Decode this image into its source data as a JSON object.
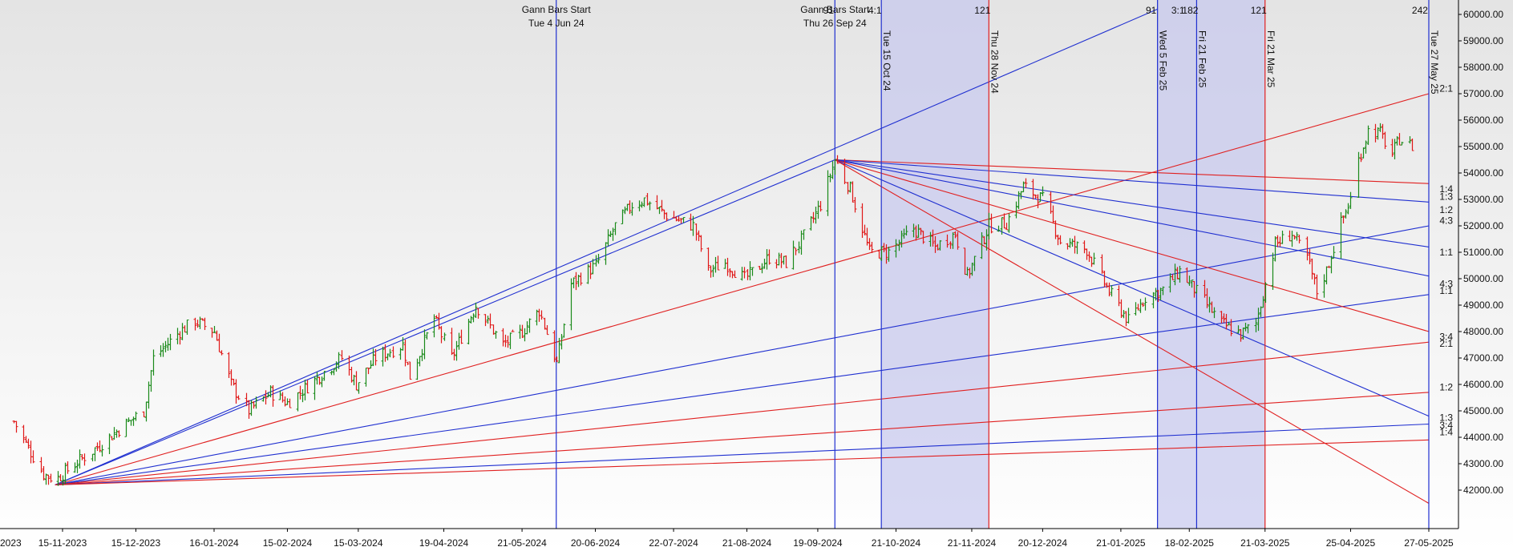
{
  "chart_data": {
    "type": "bar",
    "subtype": "ohlc-price-bars-with-gann-fans",
    "colors": {
      "up_bar": "#1a8a1a",
      "down_bar": "#e01818",
      "gann_blue": "#1f2fd0",
      "gann_red": "#e02020",
      "zone_fill": "#c6c8ee",
      "axis": "#000000",
      "background_top": "#e6e6e6",
      "background_bottom": "#ffffff"
    },
    "x_axis": {
      "ticks": [
        "15-11-2023",
        "15-12-2023",
        "16-01-2024",
        "15-02-2024",
        "15-03-2024",
        "19-04-2024",
        "21-05-2024",
        "20-06-2024",
        "22-07-2024",
        "21-08-2024",
        "19-09-2024",
        "21-10-2024",
        "21-11-2024",
        "20-12-2024",
        "21-01-2025",
        "18-02-2025",
        "21-03-2025",
        "25-04-2025",
        "27-05-2025"
      ],
      "left_clipped_label": "2023"
    },
    "y_axis": {
      "range": [
        41500,
        60300
      ],
      "ticks": [
        "42000.00",
        "43000.00",
        "44000.00",
        "45000.00",
        "46000.00",
        "47000.00",
        "48000.00",
        "49000.00",
        "50000.00",
        "51000.00",
        "52000.00",
        "53000.00",
        "54000.00",
        "55000.00",
        "56000.00",
        "57000.00",
        "58000.00",
        "59000.00",
        "60000.00"
      ],
      "values": [
        42000,
        43000,
        44000,
        45000,
        46000,
        47000,
        48000,
        49000,
        50000,
        51000,
        52000,
        53000,
        54000,
        55000,
        56000,
        57000,
        58000,
        59000,
        60000
      ]
    },
    "price_path": [
      {
        "d": "2023-10-26",
        "c": 44600
      },
      {
        "d": "2023-11-07",
        "c": 42600
      },
      {
        "d": "2023-11-12",
        "c": 42400
      },
      {
        "d": "2023-11-30",
        "c": 43700
      },
      {
        "d": "2023-12-08",
        "c": 44300
      },
      {
        "d": "2023-12-18",
        "c": 45000
      },
      {
        "d": "2023-12-22",
        "c": 47000
      },
      {
        "d": "2024-01-02",
        "c": 48000
      },
      {
        "d": "2024-01-08",
        "c": 48400
      },
      {
        "d": "2024-01-16",
        "c": 48000
      },
      {
        "d": "2024-01-23",
        "c": 46000
      },
      {
        "d": "2024-01-30",
        "c": 45000
      },
      {
        "d": "2024-02-08",
        "c": 45700
      },
      {
        "d": "2024-02-15",
        "c": 45300
      },
      {
        "d": "2024-02-29",
        "c": 46400
      },
      {
        "d": "2024-03-08",
        "c": 47000
      },
      {
        "d": "2024-03-14",
        "c": 46000
      },
      {
        "d": "2024-03-22",
        "c": 47000
      },
      {
        "d": "2024-04-02",
        "c": 47500
      },
      {
        "d": "2024-04-05",
        "c": 46300
      },
      {
        "d": "2024-04-15",
        "c": 48500
      },
      {
        "d": "2024-04-22",
        "c": 47000
      },
      {
        "d": "2024-05-02",
        "c": 49000
      },
      {
        "d": "2024-05-13",
        "c": 47500
      },
      {
        "d": "2024-05-21",
        "c": 48000
      },
      {
        "d": "2024-05-28",
        "c": 48800
      },
      {
        "d": "2024-06-04",
        "c": 46800
      },
      {
        "d": "2024-06-10",
        "c": 49800
      },
      {
        "d": "2024-06-20",
        "c": 50500
      },
      {
        "d": "2024-06-28",
        "c": 52000
      },
      {
        "d": "2024-07-05",
        "c": 52800
      },
      {
        "d": "2024-07-10",
        "c": 53000
      },
      {
        "d": "2024-07-19",
        "c": 52400
      },
      {
        "d": "2024-07-30",
        "c": 52000
      },
      {
        "d": "2024-08-05",
        "c": 50300
      },
      {
        "d": "2024-08-12",
        "c": 50600
      },
      {
        "d": "2024-08-20",
        "c": 50000
      },
      {
        "d": "2024-08-30",
        "c": 50800
      },
      {
        "d": "2024-09-06",
        "c": 50600
      },
      {
        "d": "2024-09-13",
        "c": 51600
      },
      {
        "d": "2024-09-20",
        "c": 52800
      },
      {
        "d": "2024-09-26",
        "c": 54500
      },
      {
        "d": "2024-10-02",
        "c": 53400
      },
      {
        "d": "2024-10-10",
        "c": 51000
      },
      {
        "d": "2024-10-18",
        "c": 51000
      },
      {
        "d": "2024-10-28",
        "c": 51900
      },
      {
        "d": "2024-11-06",
        "c": 51200
      },
      {
        "d": "2024-11-14",
        "c": 51700
      },
      {
        "d": "2024-11-19",
        "c": 50100
      },
      {
        "d": "2024-11-28",
        "c": 52000
      },
      {
        "d": "2024-12-05",
        "c": 52100
      },
      {
        "d": "2024-12-12",
        "c": 53500
      },
      {
        "d": "2024-12-20",
        "c": 53000
      },
      {
        "d": "2024-12-27",
        "c": 51400
      },
      {
        "d": "2025-01-07",
        "c": 51100
      },
      {
        "d": "2025-01-16",
        "c": 49500
      },
      {
        "d": "2025-01-24",
        "c": 48400
      },
      {
        "d": "2025-01-31",
        "c": 49300
      },
      {
        "d": "2025-02-07",
        "c": 49600
      },
      {
        "d": "2025-02-14",
        "c": 50300
      },
      {
        "d": "2025-02-21",
        "c": 49500
      },
      {
        "d": "2025-03-03",
        "c": 48300
      },
      {
        "d": "2025-03-11",
        "c": 47900
      },
      {
        "d": "2025-03-17",
        "c": 48300
      },
      {
        "d": "2025-03-25",
        "c": 51300
      },
      {
        "d": "2025-04-01",
        "c": 51700
      },
      {
        "d": "2025-04-07",
        "c": 50800
      },
      {
        "d": "2025-04-11",
        "c": 49500
      },
      {
        "d": "2025-04-15",
        "c": 50300
      },
      {
        "d": "2025-04-21",
        "c": 52100
      },
      {
        "d": "2025-04-25",
        "c": 53000
      },
      {
        "d": "2025-04-28",
        "c": 54500
      },
      {
        "d": "2025-05-02",
        "c": 55600
      },
      {
        "d": "2025-05-07",
        "c": 55500
      },
      {
        "d": "2025-05-12",
        "c": 54700
      },
      {
        "d": "2025-05-15",
        "c": 55300
      },
      {
        "d": "2025-05-20",
        "c": 55000
      }
    ],
    "shaded_zones": [
      {
        "from": "2024-10-15",
        "to": "2024-11-28"
      },
      {
        "from": "2025-02-05",
        "to": "2025-03-21"
      }
    ],
    "time_lines": [
      {
        "date": "2024-06-04",
        "color": "blue",
        "label_top": [
          "Gann Bars Start",
          "Tue 4 Jun 24"
        ]
      },
      {
        "date": "2024-09-26",
        "color": "blue",
        "label_top": [
          "Gann Bars Start",
          "Thu 26 Sep 24"
        ]
      },
      {
        "date": "2024-10-15",
        "color": "blue",
        "label_vertical": "Tue 15 Oct 24"
      },
      {
        "date": "2024-11-28",
        "color": "red",
        "label_vertical": "Thu 28 Nov 24"
      },
      {
        "date": "2025-02-05",
        "color": "blue",
        "label_vertical": "Wed 5 Feb 25"
      },
      {
        "date": "2025-02-21",
        "color": "blue",
        "label_vertical": "Fri 21 Feb 25"
      },
      {
        "date": "2025-03-21",
        "color": "red",
        "label_vertical": "Fri 21 Mar 25"
      },
      {
        "date": "2025-05-27",
        "color": "blue",
        "label_vertical": "Tue 27 May 25"
      }
    ],
    "top_counts": [
      {
        "date": "2024-09-26",
        "text": "91"
      },
      {
        "date": "2024-10-15",
        "text": "4:1"
      },
      {
        "date": "2024-11-28",
        "text": "121"
      },
      {
        "date": "2025-02-05",
        "text": "91"
      },
      {
        "date": "2025-02-16",
        "text": "3:1"
      },
      {
        "date": "2025-02-21",
        "text": "182"
      },
      {
        "date": "2025-03-21",
        "text": "121"
      },
      {
        "date": "2025-05-26",
        "text": "242"
      }
    ],
    "gann_fans": [
      {
        "origin": {
          "d": "2023-11-12",
          "p": 42200
        },
        "lines": [
          {
            "color": "blue",
            "end": {
              "d": "2024-09-26",
              "p": 54500
            }
          },
          {
            "color": "blue",
            "end": {
              "d": "2025-02-05",
              "p": 60200
            }
          },
          {
            "color": "red",
            "end": {
              "d": "2025-05-27",
              "p": 57000
            }
          },
          {
            "color": "blue",
            "end": {
              "d": "2025-05-27",
              "p": 52000
            }
          },
          {
            "color": "blue",
            "end": {
              "d": "2025-05-27",
              "p": 49400
            }
          },
          {
            "color": "red",
            "end": {
              "d": "2025-05-27",
              "p": 47600
            }
          },
          {
            "color": "red",
            "end": {
              "d": "2025-05-27",
              "p": 45700
            }
          },
          {
            "color": "blue",
            "end": {
              "d": "2025-05-27",
              "p": 44500
            }
          },
          {
            "color": "red",
            "end": {
              "d": "2025-05-27",
              "p": 43900
            }
          }
        ]
      },
      {
        "origin": {
          "d": "2024-09-26",
          "p": 54500
        },
        "lines": [
          {
            "color": "red",
            "end": {
              "d": "2025-05-27",
              "p": 53600
            }
          },
          {
            "color": "blue",
            "end": {
              "d": "2025-05-27",
              "p": 52900
            }
          },
          {
            "color": "blue",
            "end": {
              "d": "2025-05-27",
              "p": 51200
            }
          },
          {
            "color": "blue",
            "end": {
              "d": "2025-05-27",
              "p": 50100
            }
          },
          {
            "color": "red",
            "end": {
              "d": "2025-05-27",
              "p": 48000
            }
          },
          {
            "color": "blue",
            "end": {
              "d": "2025-05-27",
              "p": 44800
            }
          },
          {
            "color": "red",
            "end": {
              "d": "2025-05-27",
              "p": 41500
            }
          }
        ]
      }
    ],
    "ratio_labels": [
      {
        "text": "2:1",
        "p": 57200
      },
      {
        "text": "1:4",
        "p": 53400
      },
      {
        "text": "1:3",
        "p": 53100
      },
      {
        "text": "1:2",
        "p": 52600
      },
      {
        "text": "4:3",
        "p": 52200
      },
      {
        "text": "1:1",
        "p": 51000
      },
      {
        "text": "4:3",
        "p": 49800
      },
      {
        "text": "1:1",
        "p": 49550
      },
      {
        "text": "3:4",
        "p": 47800
      },
      {
        "text": "2:1",
        "p": 47550
      },
      {
        "text": "1:2",
        "p": 45900
      },
      {
        "text": "1:3",
        "p": 44750
      },
      {
        "text": "3:4",
        "p": 44450
      },
      {
        "text": "1:4",
        "p": 44200
      }
    ]
  }
}
